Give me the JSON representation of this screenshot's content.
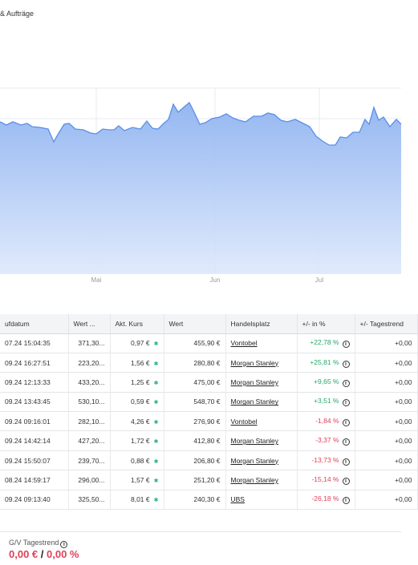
{
  "header": {
    "title": "& Aufträge"
  },
  "chart": {
    "months": [
      "Mai",
      "Jun",
      "Jul"
    ],
    "fill_color": "#9dbcf1",
    "line_color": "#5b8fe8"
  },
  "table": {
    "headers": [
      "ufdatum",
      "Wert ...",
      "Akt. Kurs",
      "Wert",
      "Handelsplatz",
      "+/- in %",
      "+/- Tagestrend"
    ],
    "rows": [
      {
        "date": "07.24 15:04:35",
        "wert1": "371,30...",
        "kurs": "0,97 €",
        "wert": "455,90 €",
        "platz": "Vontobel",
        "pct": "+22,78 %",
        "sign": "pos",
        "trend": "+0,00"
      },
      {
        "date": "09.24 16:27:51",
        "wert1": "223,20...",
        "kurs": "1,56 €",
        "wert": "280,80 €",
        "platz": "Morgan Stanley",
        "pct": "+25,81 %",
        "sign": "pos",
        "trend": "+0,00"
      },
      {
        "date": "09.24 12:13:33",
        "wert1": "433,20...",
        "kurs": "1,25 €",
        "wert": "475,00 €",
        "platz": "Morgan Stanley",
        "pct": "+9,65 %",
        "sign": "pos",
        "trend": "+0,00"
      },
      {
        "date": "09.24 13:43:45",
        "wert1": "530,10...",
        "kurs": "0,59 €",
        "wert": "548,70 €",
        "platz": "Morgan Stanley",
        "pct": "+3,51 %",
        "sign": "pos",
        "trend": "+0,00"
      },
      {
        "date": "09.24 09:16:01",
        "wert1": "282,10...",
        "kurs": "4,26 €",
        "wert": "276,90 €",
        "platz": "Vontobel",
        "pct": "-1,84 %",
        "sign": "neg",
        "trend": "+0,00"
      },
      {
        "date": "09.24 14:42:14",
        "wert1": "427,20...",
        "kurs": "1,72 €",
        "wert": "412,80 €",
        "platz": "Morgan Stanley",
        "pct": "-3,37 %",
        "sign": "neg",
        "trend": "+0,00"
      },
      {
        "date": "09.24 15:50:07",
        "wert1": "239,70...",
        "kurs": "0,88 €",
        "wert": "206,80 €",
        "platz": "Morgan Stanley",
        "pct": "-13,73 %",
        "sign": "neg",
        "trend": "+0,00"
      },
      {
        "date": "08.24 14:59:17",
        "wert1": "296,00...",
        "kurs": "1,57 €",
        "wert": "251,20 €",
        "platz": "Morgan Stanley",
        "pct": "-15,14 %",
        "sign": "neg",
        "trend": "+0,00"
      },
      {
        "date": "09.24 09:13:40",
        "wert1": "325,50...",
        "kurs": "8,01 €",
        "wert": "240,30 €",
        "platz": "UBS",
        "pct": "-26,18 %",
        "sign": "neg",
        "trend": "+0,00"
      }
    ]
  },
  "footer": {
    "trend_label": "G/V Tagestrend",
    "trend_abs": "0,00 €",
    "trend_sep": " / ",
    "trend_pct": "0,00 %"
  }
}
